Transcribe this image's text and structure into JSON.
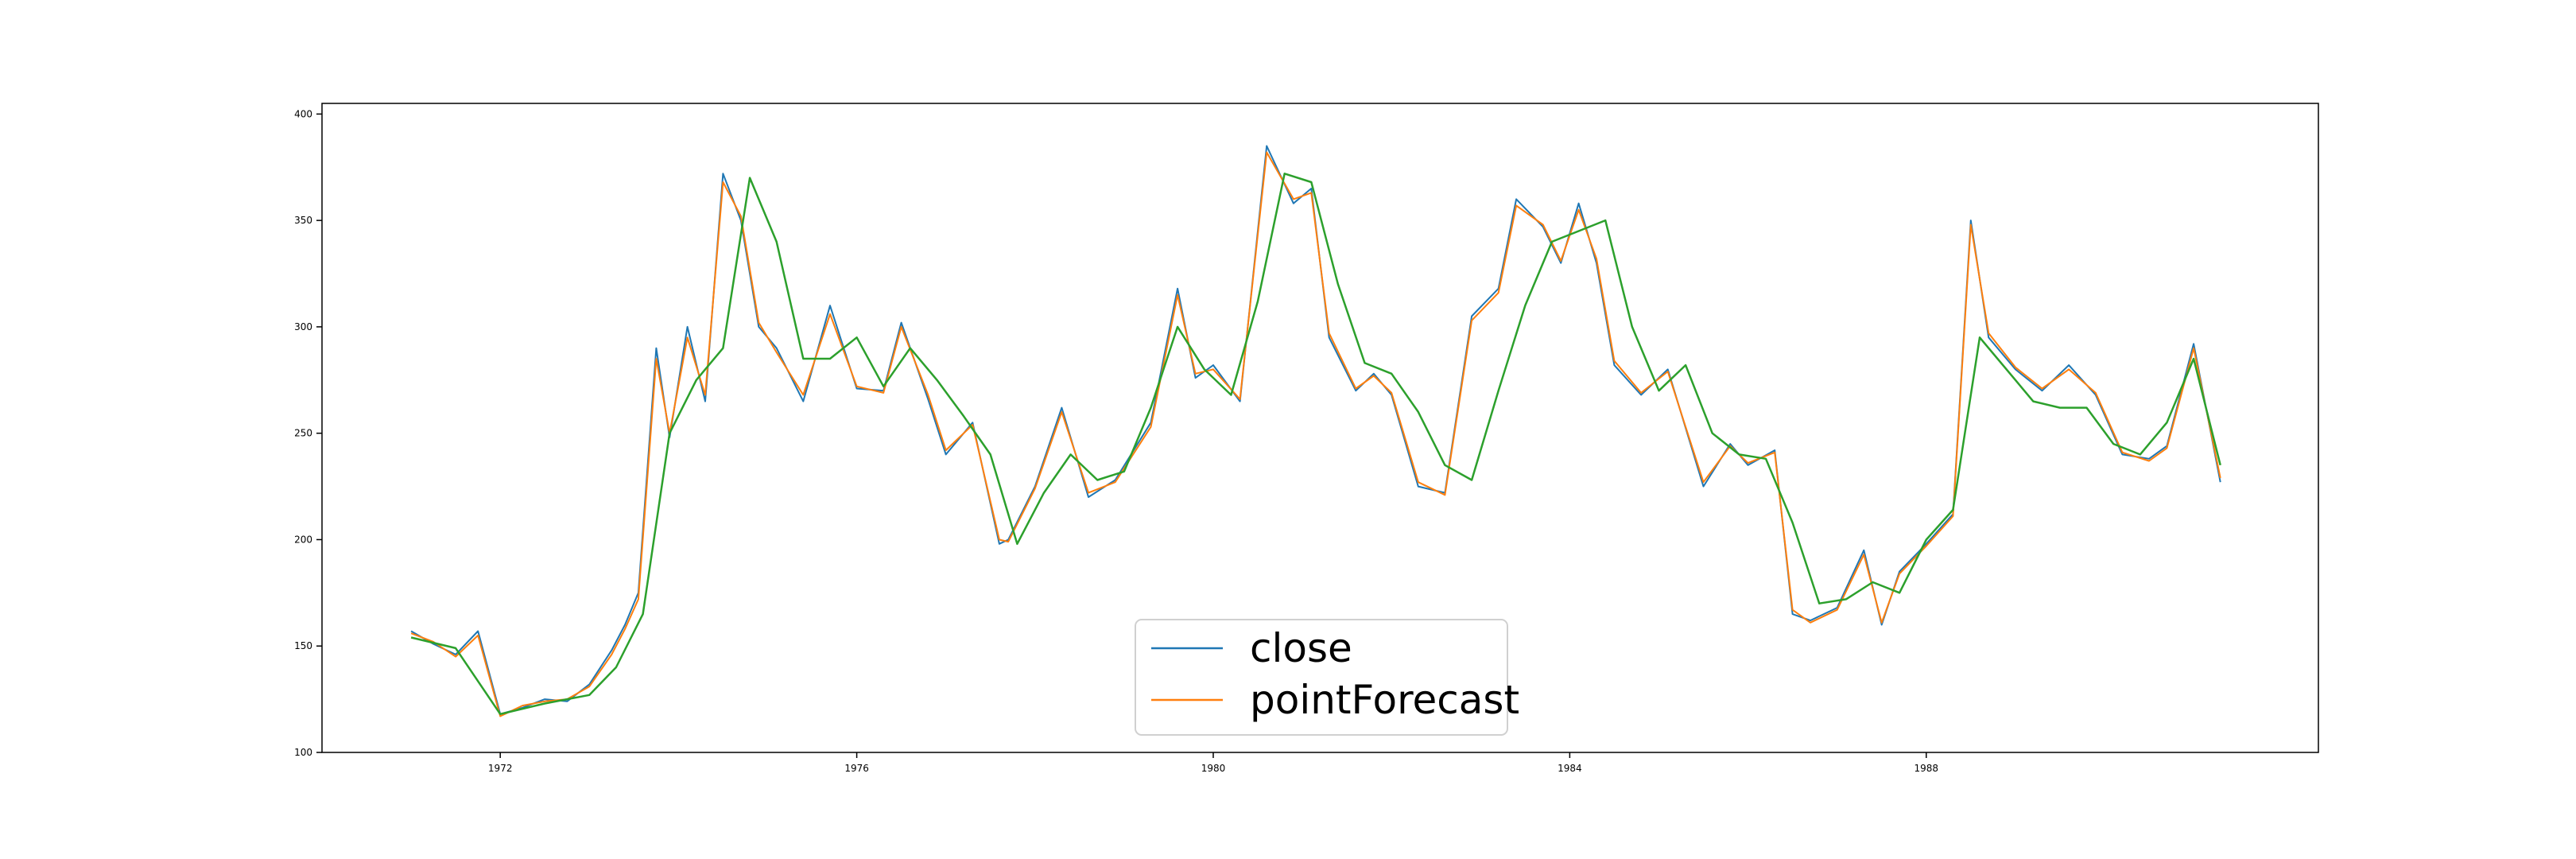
{
  "chart_data": {
    "type": "line",
    "title": "",
    "xlabel": "",
    "ylabel": "",
    "xlim": [
      1970.0,
      1992.4
    ],
    "ylim": [
      100,
      405
    ],
    "x_ticks": [
      1972,
      1976,
      1980,
      1984,
      1988
    ],
    "y_ticks": [
      100,
      150,
      200,
      250,
      300,
      350,
      400
    ],
    "grid": false,
    "legend": {
      "position": "lower-center",
      "entries": [
        "close",
        "pointForecast"
      ]
    },
    "colors": {
      "close": "#1f77b4",
      "pointForecast": "#ff7f0e",
      "smooth": "#2ca02c",
      "axes": "#000000"
    },
    "series": [
      {
        "name": "close",
        "x": [
          1971.0,
          1971.25,
          1971.5,
          1971.75,
          1972.0,
          1972.25,
          1972.5,
          1972.75,
          1973.0,
          1973.25,
          1973.4,
          1973.55,
          1973.75,
          1973.9,
          1974.1,
          1974.3,
          1974.5,
          1974.7,
          1974.9,
          1975.1,
          1975.4,
          1975.7,
          1976.0,
          1976.3,
          1976.5,
          1976.8,
          1977.0,
          1977.3,
          1977.6,
          1977.7,
          1978.0,
          1978.3,
          1978.6,
          1978.9,
          1979.3,
          1979.6,
          1979.8,
          1980.0,
          1980.3,
          1980.6,
          1980.9,
          1981.1,
          1981.3,
          1981.6,
          1981.8,
          1982.0,
          1982.3,
          1982.6,
          1982.9,
          1983.2,
          1983.4,
          1983.7,
          1983.9,
          1984.1,
          1984.3,
          1984.5,
          1984.8,
          1985.1,
          1985.5,
          1985.8,
          1986.0,
          1986.3,
          1986.5,
          1986.7,
          1987.0,
          1987.3,
          1987.5,
          1987.7,
          1988.0,
          1988.3,
          1988.5,
          1988.7,
          1989.0,
          1989.3,
          1989.6,
          1989.9,
          1990.2,
          1990.5,
          1990.7,
          1991.0,
          1991.3
        ],
        "values": [
          157,
          151,
          146,
          157,
          118,
          121,
          125,
          124,
          132,
          148,
          160,
          175,
          290,
          248,
          300,
          265,
          372,
          350,
          300,
          290,
          265,
          310,
          271,
          270,
          302,
          266,
          240,
          255,
          198,
          200,
          225,
          262,
          220,
          228,
          255,
          318,
          276,
          282,
          265,
          385,
          358,
          365,
          295,
          270,
          278,
          268,
          225,
          222,
          305,
          318,
          360,
          347,
          330,
          358,
          330,
          282,
          268,
          280,
          225,
          245,
          235,
          242,
          165,
          162,
          168,
          195,
          160,
          185,
          198,
          212,
          350,
          295,
          280,
          270,
          282,
          268,
          240,
          238,
          244,
          292,
          227
        ]
      },
      {
        "name": "pointForecast",
        "x": [
          1971.0,
          1971.25,
          1971.5,
          1971.75,
          1972.0,
          1972.25,
          1972.5,
          1972.75,
          1973.0,
          1973.25,
          1973.4,
          1973.55,
          1973.75,
          1973.9,
          1974.1,
          1974.3,
          1974.5,
          1974.7,
          1974.9,
          1975.1,
          1975.4,
          1975.7,
          1976.0,
          1976.3,
          1976.5,
          1976.8,
          1977.0,
          1977.3,
          1977.6,
          1977.7,
          1978.0,
          1978.3,
          1978.6,
          1978.9,
          1979.3,
          1979.6,
          1979.8,
          1980.0,
          1980.3,
          1980.6,
          1980.9,
          1981.1,
          1981.3,
          1981.6,
          1981.8,
          1982.0,
          1982.3,
          1982.6,
          1982.9,
          1983.2,
          1983.4,
          1983.7,
          1983.9,
          1984.1,
          1984.3,
          1984.5,
          1984.8,
          1985.1,
          1985.5,
          1985.8,
          1986.0,
          1986.3,
          1986.5,
          1986.7,
          1987.0,
          1987.3,
          1987.5,
          1987.7,
          1988.0,
          1988.3,
          1988.5,
          1988.7,
          1989.0,
          1989.3,
          1989.6,
          1989.9,
          1990.2,
          1990.5,
          1990.7,
          1991.0,
          1991.3
        ],
        "values": [
          156,
          152,
          145,
          155,
          117,
          122,
          124,
          125,
          131,
          146,
          158,
          172,
          285,
          250,
          295,
          268,
          368,
          352,
          302,
          288,
          268,
          306,
          272,
          269,
          300,
          268,
          242,
          254,
          200,
          199,
          224,
          260,
          222,
          227,
          253,
          315,
          278,
          280,
          266,
          382,
          360,
          363,
          297,
          271,
          277,
          269,
          227,
          221,
          303,
          316,
          357,
          348,
          331,
          355,
          332,
          284,
          269,
          279,
          227,
          244,
          236,
          241,
          167,
          161,
          167,
          193,
          161,
          184,
          197,
          211,
          348,
          297,
          281,
          271,
          280,
          269,
          241,
          237,
          243,
          290,
          229
        ]
      },
      {
        "name": "",
        "x": [
          1971.0,
          1971.5,
          1972.0,
          1972.5,
          1973.0,
          1973.3,
          1973.6,
          1973.9,
          1974.2,
          1974.5,
          1974.8,
          1975.1,
          1975.4,
          1975.7,
          1976.0,
          1976.3,
          1976.6,
          1976.9,
          1977.2,
          1977.5,
          1977.8,
          1978.1,
          1978.4,
          1978.7,
          1979.0,
          1979.3,
          1979.6,
          1979.9,
          1980.2,
          1980.5,
          1980.8,
          1981.1,
          1981.4,
          1981.7,
          1982.0,
          1982.3,
          1982.6,
          1982.9,
          1983.2,
          1983.5,
          1983.8,
          1984.1,
          1984.4,
          1984.7,
          1985.0,
          1985.3,
          1985.6,
          1985.9,
          1986.2,
          1986.5,
          1986.8,
          1987.1,
          1987.4,
          1987.7,
          1988.0,
          1988.3,
          1988.6,
          1988.9,
          1989.2,
          1989.5,
          1989.8,
          1990.1,
          1990.4,
          1990.7,
          1991.0,
          1991.3
        ],
        "values": [
          154,
          149,
          118,
          123,
          127,
          140,
          165,
          250,
          275,
          290,
          370,
          340,
          285,
          285,
          295,
          272,
          290,
          275,
          258,
          240,
          198,
          222,
          240,
          228,
          232,
          262,
          300,
          280,
          268,
          312,
          372,
          368,
          320,
          283,
          278,
          260,
          235,
          228,
          270,
          310,
          340,
          345,
          350,
          300,
          270,
          282,
          250,
          240,
          238,
          208,
          170,
          172,
          180,
          175,
          200,
          214,
          295,
          280,
          265,
          262,
          262,
          245,
          240,
          255,
          285,
          235
        ]
      }
    ]
  }
}
